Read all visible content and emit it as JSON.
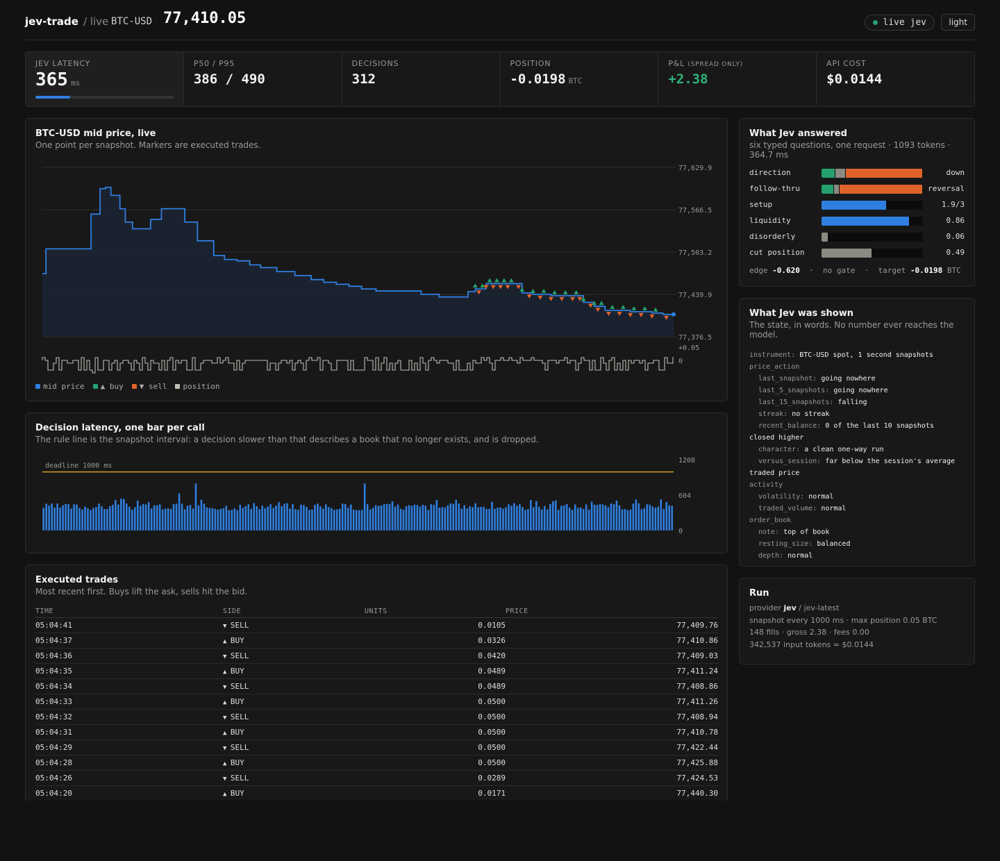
{
  "header": {
    "app_name": "jev-trade",
    "mode": "/ live",
    "pair": "BTC-USD",
    "price": "77,410.05",
    "live_badge": "live jev",
    "theme_button": "light"
  },
  "stats": [
    {
      "label": "JEV LATENCY",
      "value": "365",
      "unit": "ms",
      "bar_fraction": 0.25
    },
    {
      "label": "P50 / P95",
      "value": "386 / 490"
    },
    {
      "label": "DECISIONS",
      "value": "312"
    },
    {
      "label": "POSITION",
      "value": "-0.0198",
      "unit": "BTC"
    },
    {
      "label": "P&L",
      "label_note": "(SPREAD ONLY)",
      "value": "+2.38"
    },
    {
      "label": "API COST",
      "value": "$0.0144"
    }
  ],
  "colors": {
    "mid_price": "#2f7fe0",
    "buy": "#24a06f",
    "sell": "#e0622b",
    "position": "#bdbdb4",
    "deadline": "#d99a1e",
    "bar": "#2f7fe0"
  },
  "price_chart": {
    "title": "BTC-USD mid price, live",
    "subtitle": "One point per snapshot. Markers are executed trades.",
    "y_ticks": [
      "77,629.9",
      "77,566.5",
      "77,503.2",
      "77,439.9",
      "77,376.5"
    ],
    "pos_ticks": [
      "+0.05",
      "0"
    ],
    "legend": [
      {
        "label": "mid price",
        "color_key": "mid_price"
      },
      {
        "label": "▲ buy",
        "color_key": "buy"
      },
      {
        "label": "▼ sell",
        "color_key": "sell"
      },
      {
        "label": "position",
        "color_key": "position"
      }
    ]
  },
  "chart_data": [
    {
      "type": "line",
      "title": "BTC-USD mid price, live",
      "ylim": [
        77376.5,
        77629.9
      ],
      "x": [
        0,
        2,
        7,
        23,
        27,
        32,
        35,
        38,
        43,
        46,
        50,
        56,
        60,
        66,
        71,
        79,
        86,
        95,
        101,
        108,
        115,
        121,
        130,
        140,
        149,
        156,
        163,
        170,
        177,
        185,
        200,
        210,
        220,
        230,
        236,
        240,
        246,
        256,
        266,
        272,
        282,
        294,
        300,
        306,
        312,
        318,
        326,
        334,
        338,
        344,
        350
      ],
      "y": [
        77471,
        77508,
        77508,
        77508,
        77560,
        77598,
        77600,
        77588,
        77568,
        77548,
        77538,
        77538,
        77552,
        77568,
        77568,
        77548,
        77520,
        77498,
        77492,
        77490,
        77484,
        77480,
        77474,
        77468,
        77462,
        77458,
        77455,
        77452,
        77448,
        77445,
        77445,
        77440,
        77436,
        77436,
        77444,
        77448,
        77456,
        77456,
        77442,
        77440,
        77438,
        77438,
        77428,
        77422,
        77416,
        77416,
        77414,
        77414,
        77412,
        77410,
        77410
      ],
      "buys_x": [
        240,
        244,
        248,
        252,
        256,
        260,
        266,
        272,
        278,
        284,
        290,
        296,
        300,
        306,
        310,
        316,
        322,
        328,
        334,
        340
      ],
      "sells_x": [
        242,
        246,
        250,
        254,
        258,
        264,
        270,
        276,
        282,
        288,
        294,
        298,
        304,
        308,
        314,
        320,
        326,
        332,
        338,
        346
      ]
    },
    {
      "type": "bar",
      "title": "Decision latency, one bar per call",
      "ylim": [
        0,
        1208
      ],
      "y_ticks": [
        1208,
        604,
        0
      ],
      "deadline_ms": 1000,
      "count": 312,
      "typical_ms": 386,
      "p95_ms": 490,
      "spikes_ms": [
        630,
        800,
        800,
        540
      ]
    }
  ],
  "latency_chart": {
    "title": "Decision latency, one bar per call",
    "subtitle": "The rule line is the snapshot interval: a decision slower than that describes a book that no longer exists, and is dropped.",
    "deadline_label": "deadline 1000 ms",
    "y_ticks": [
      "1208",
      "604",
      "0"
    ]
  },
  "answers": {
    "title": "What Jev answered",
    "subtitle": "six typed questions, one request · 1093 tokens · 364.7 ms",
    "rows": [
      {
        "label": "direction",
        "value": "down",
        "segments": [
          {
            "c": "#24a06f",
            "w": 0.13
          },
          {
            "c": "#8a8a82",
            "w": 0.1
          },
          {
            "c": "#e0622b",
            "w": 0.77
          }
        ]
      },
      {
        "label": "follow-thru",
        "value": "reversal",
        "segments": [
          {
            "c": "#24a06f",
            "w": 0.12
          },
          {
            "c": "#8a8a82",
            "w": 0.05
          },
          {
            "c": "#e0622b",
            "w": 0.83
          }
        ]
      },
      {
        "label": "setup",
        "value": "1.9/3",
        "segments": [
          {
            "c": "#2f7fe0",
            "w": 0.64
          }
        ]
      },
      {
        "label": "liquidity",
        "value": "0.86",
        "segments": [
          {
            "c": "#2f7fe0",
            "w": 0.86
          }
        ]
      },
      {
        "label": "disorderly",
        "value": "0.06",
        "segments": [
          {
            "c": "#8a8a82",
            "w": 0.06
          }
        ]
      },
      {
        "label": "cut position",
        "value": "0.49",
        "segments": [
          {
            "c": "#8a8a82",
            "w": 0.49
          }
        ]
      }
    ],
    "footer": {
      "edge_label": "edge",
      "edge": "-0.620",
      "gate": "no gate",
      "target_label": "target",
      "target": "-0.0198",
      "unit": "BTC"
    }
  },
  "shown": {
    "title": "What Jev was shown",
    "subtitle": "The state, in words. No number ever reaches the model.",
    "lines": [
      {
        "k": "instrument:",
        "v": "BTC-USD spot, 1 second snapshots"
      },
      {
        "k": "price_action",
        "v": ""
      },
      {
        "k": "last_snapshot:",
        "v": "going nowhere",
        "indent": true
      },
      {
        "k": "last_5_snapshots:",
        "v": "going nowhere",
        "indent": true
      },
      {
        "k": "last_15_snapshots:",
        "v": "falling",
        "indent": true
      },
      {
        "k": "streak:",
        "v": "no streak",
        "indent": true
      },
      {
        "k": "recent_balance:",
        "v": "0 of the last 10 snapshots",
        "indent": true
      },
      {
        "k": "",
        "v": "closed higher"
      },
      {
        "k": "character:",
        "v": "a clean one-way run",
        "indent": true
      },
      {
        "k": "versus_session:",
        "v": "far below the session's average",
        "indent": true
      },
      {
        "k": "",
        "v": "traded price"
      },
      {
        "k": "activity",
        "v": ""
      },
      {
        "k": "volatility:",
        "v": "normal",
        "indent": true
      },
      {
        "k": "traded_volume:",
        "v": "normal",
        "indent": true
      },
      {
        "k": "order_book",
        "v": ""
      },
      {
        "k": "note:",
        "v": "top of book",
        "indent": true
      },
      {
        "k": "resting_size:",
        "v": "balanced",
        "indent": true
      },
      {
        "k": "depth:",
        "v": "normal",
        "indent": true
      }
    ]
  },
  "run": {
    "title": "Run",
    "provider_label": "provider",
    "provider": "jev",
    "model": "/ jev-latest",
    "line2": "snapshot every 1000 ms · max position 0.05 BTC",
    "line3": "148 fills · gross 2.38 · fees 0.00",
    "line4": "342,537 input tokens = $0.0144"
  },
  "trades": {
    "title": "Executed trades",
    "subtitle": "Most recent first. Buys lift the ask, sells hit the bid.",
    "columns": [
      "TIME",
      "SIDE",
      "UNITS",
      "PRICE"
    ],
    "rows": [
      {
        "time": "05:04:41",
        "side": "SELL",
        "units": "0.0105",
        "price": "77,409.76"
      },
      {
        "time": "05:04:37",
        "side": "BUY",
        "units": "0.0326",
        "price": "77,410.86"
      },
      {
        "time": "05:04:36",
        "side": "SELL",
        "units": "0.0420",
        "price": "77,409.03"
      },
      {
        "time": "05:04:35",
        "side": "BUY",
        "units": "0.0489",
        "price": "77,411.24"
      },
      {
        "time": "05:04:34",
        "side": "SELL",
        "units": "0.0489",
        "price": "77,408.86"
      },
      {
        "time": "05:04:33",
        "side": "BUY",
        "units": "0.0500",
        "price": "77,411.26"
      },
      {
        "time": "05:04:32",
        "side": "SELL",
        "units": "0.0500",
        "price": "77,408.94"
      },
      {
        "time": "05:04:31",
        "side": "BUY",
        "units": "0.0500",
        "price": "77,410.78"
      },
      {
        "time": "05:04:29",
        "side": "SELL",
        "units": "0.0500",
        "price": "77,422.44"
      },
      {
        "time": "05:04:28",
        "side": "BUY",
        "units": "0.0500",
        "price": "77,425.88"
      },
      {
        "time": "05:04:26",
        "side": "SELL",
        "units": "0.0289",
        "price": "77,424.53"
      },
      {
        "time": "05:04:20",
        "side": "BUY",
        "units": "0.0171",
        "price": "77,440.30"
      }
    ]
  }
}
